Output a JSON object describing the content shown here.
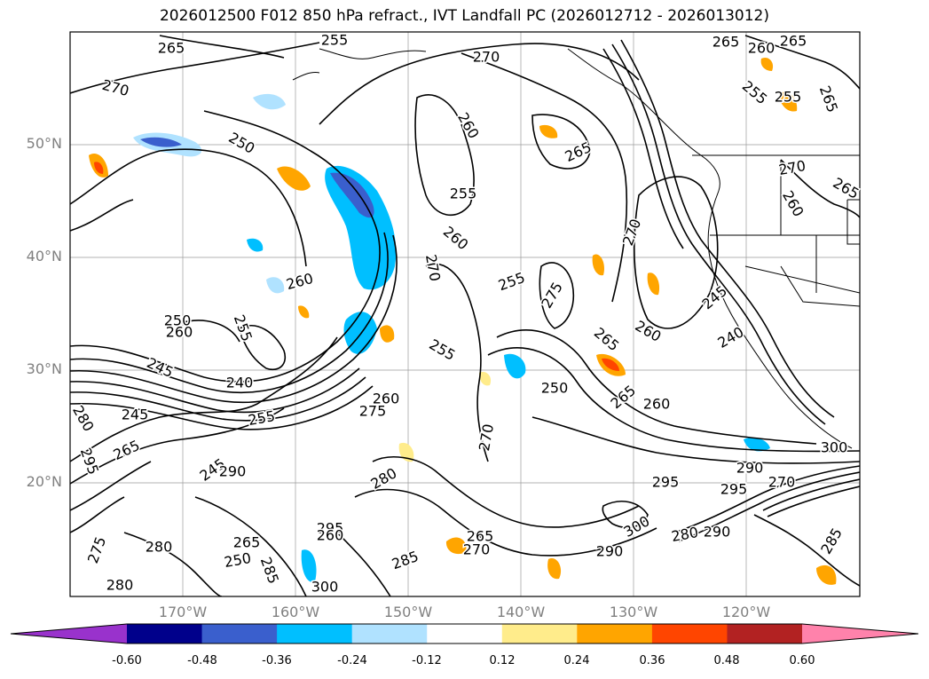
{
  "title": "2026012500 F012 850 hPa refract., IVT Landfall PC (2026012712 - 2026013012)",
  "latitude_labels": [
    "50°N",
    "40°N",
    "30°N",
    "20°N"
  ],
  "longitude_labels": [
    "170°W",
    "160°W",
    "150°W",
    "140°W",
    "130°W",
    "120°W"
  ],
  "contour_labels": [
    "265",
    "270",
    "255",
    "270",
    "265",
    "260",
    "265",
    "250",
    "255",
    "255",
    "265",
    "260",
    "265",
    "270",
    "265",
    "260",
    "255",
    "260",
    "270",
    "260",
    "255",
    "270",
    "275",
    "260",
    "245",
    "240",
    "255",
    "260",
    "250",
    "265",
    "250",
    "240",
    "245",
    "265",
    "260",
    "260",
    "255",
    "275",
    "270",
    "280",
    "245",
    "255",
    "265",
    "245",
    "290",
    "280",
    "295",
    "295",
    "300",
    "290",
    "270",
    "280",
    "280",
    "275",
    "265",
    "250",
    "300",
    "295",
    "285",
    "290",
    "270",
    "265",
    "285",
    "280",
    "300",
    "285",
    "295",
    "290",
    "260"
  ],
  "colorbar": {
    "ticks": [
      "-0.60",
      "-0.48",
      "-0.36",
      "-0.24",
      "-0.12",
      "0.12",
      "0.24",
      "0.36",
      "0.48",
      "0.60"
    ],
    "colors": [
      "#9932cc",
      "#00008b",
      "#3a5fcd",
      "#00bfff",
      "#b0e2ff",
      "#ffffff",
      "#ffec8b",
      "#ffa500",
      "#ff4500",
      "#b22222",
      "#ff82ab"
    ]
  }
}
